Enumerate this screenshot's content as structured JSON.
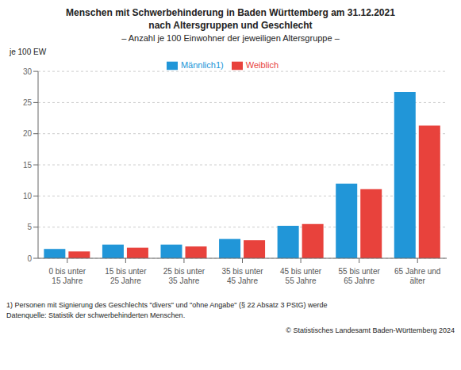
{
  "chart_data": {
    "type": "bar",
    "title": "Menschen mit Schwerbehinderung in Baden Württemberg am 31.12.2021\nnach Altersgruppen und Geschlecht",
    "subtitle": "– Anzahl je 100 Einwohner der jeweiligen Altersgruppe –",
    "y_label": "je 100 EW",
    "categories": [
      "0 bis unter\n15 Jahre",
      "15 bis unter\n25 Jahre",
      "25 bis unter\n35 Jahre",
      "35 bis unter\n45 Jahre",
      "45 bis unter\n55 Jahre",
      "55 bis unter\n65 Jahre",
      "65 Jahre und\nälter"
    ],
    "series": [
      {
        "name": "Männlich1)",
        "color": "#2196d8",
        "values": [
          1.5,
          2.2,
          2.2,
          3.1,
          5.2,
          12.0,
          26.7
        ]
      },
      {
        "name": "Weiblich",
        "color": "#e8423c",
        "values": [
          1.1,
          1.7,
          1.9,
          2.9,
          5.5,
          11.1,
          21.3
        ]
      }
    ],
    "ylim": [
      0,
      30
    ],
    "yticks": [
      0,
      5,
      10,
      15,
      20,
      25,
      30
    ],
    "grid": true,
    "legend": "top",
    "annotations": [
      "1) Personen mit Signierung des Geschlechts \"divers\" und \"ohne Angabe\" (§ 22 Absatz 3 PStG) werde",
      "Datenquelle: Statistik der schwerbehinderten Menschen.",
      "© Statistisches Landesamt Baden-Württemberg 2024"
    ]
  }
}
